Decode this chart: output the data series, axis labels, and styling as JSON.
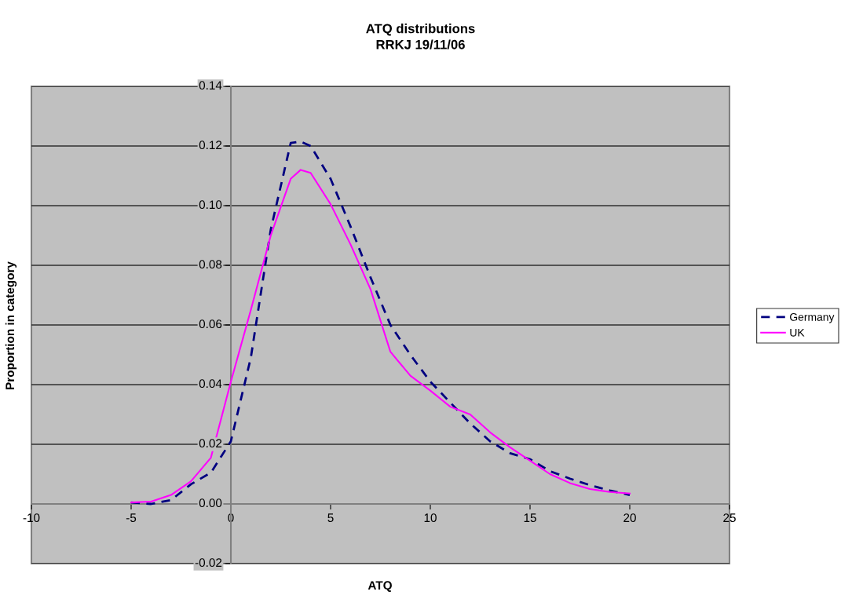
{
  "chart_data": {
    "type": "line",
    "title": "ATQ distributions\nRRKJ 19/11/06",
    "xlabel": "ATQ",
    "ylabel": "Proportion in category",
    "series": [
      {
        "name": "Germany",
        "color": "#000080",
        "line_style": "dashed",
        "x": [
          -5,
          -4,
          -3,
          -2,
          -1,
          0,
          1,
          2,
          3,
          3.5,
          4,
          5,
          6,
          7,
          8,
          9,
          10,
          11,
          12,
          13,
          14,
          15,
          16,
          17,
          18,
          19,
          20
        ],
        "values": [
          0.0005,
          0.0,
          0.0013,
          0.0066,
          0.0105,
          0.021,
          0.049,
          0.092,
          0.121,
          0.1215,
          0.12,
          0.109,
          0.093,
          0.076,
          0.06,
          0.05,
          0.041,
          0.034,
          0.027,
          0.021,
          0.017,
          0.015,
          0.011,
          0.0085,
          0.0063,
          0.0045,
          0.003
        ]
      },
      {
        "name": "UK",
        "color": "#ff00ff",
        "line_style": "solid",
        "x": [
          -5,
          -4,
          -3,
          -2,
          -1,
          0,
          1,
          2,
          3,
          3.5,
          4,
          5,
          6,
          7,
          8,
          9,
          10,
          11,
          12,
          13,
          14,
          15,
          16,
          17,
          18,
          19,
          20
        ],
        "values": [
          0.0005,
          0.0008,
          0.003,
          0.0076,
          0.0155,
          0.041,
          0.065,
          0.09,
          0.109,
          0.112,
          0.111,
          0.1005,
          0.087,
          0.072,
          0.051,
          0.043,
          0.038,
          0.0326,
          0.03,
          0.024,
          0.019,
          0.0145,
          0.01,
          0.007,
          0.005,
          0.004,
          0.0035
        ]
      }
    ],
    "xlim": [
      -10,
      25
    ],
    "ylim": [
      -0.02,
      0.14
    ],
    "xticks": [
      -10,
      -5,
      0,
      5,
      10,
      15,
      20,
      25
    ],
    "yticks": [
      {
        "value": -0.02,
        "label": "-0.02"
      },
      {
        "value": 0,
        "label": "0.00"
      },
      {
        "value": 0.02,
        "label": "0.02"
      },
      {
        "value": 0.04,
        "label": "0.04"
      },
      {
        "value": 0.06,
        "label": "0.06"
      },
      {
        "value": 0.08,
        "label": "0.08"
      },
      {
        "value": 0.1,
        "label": "0.10"
      },
      {
        "value": 0.12,
        "label": "0.12"
      },
      {
        "value": 0.14,
        "label": "0.14"
      }
    ],
    "grid": "y",
    "legend": "right",
    "marker": "none"
  }
}
